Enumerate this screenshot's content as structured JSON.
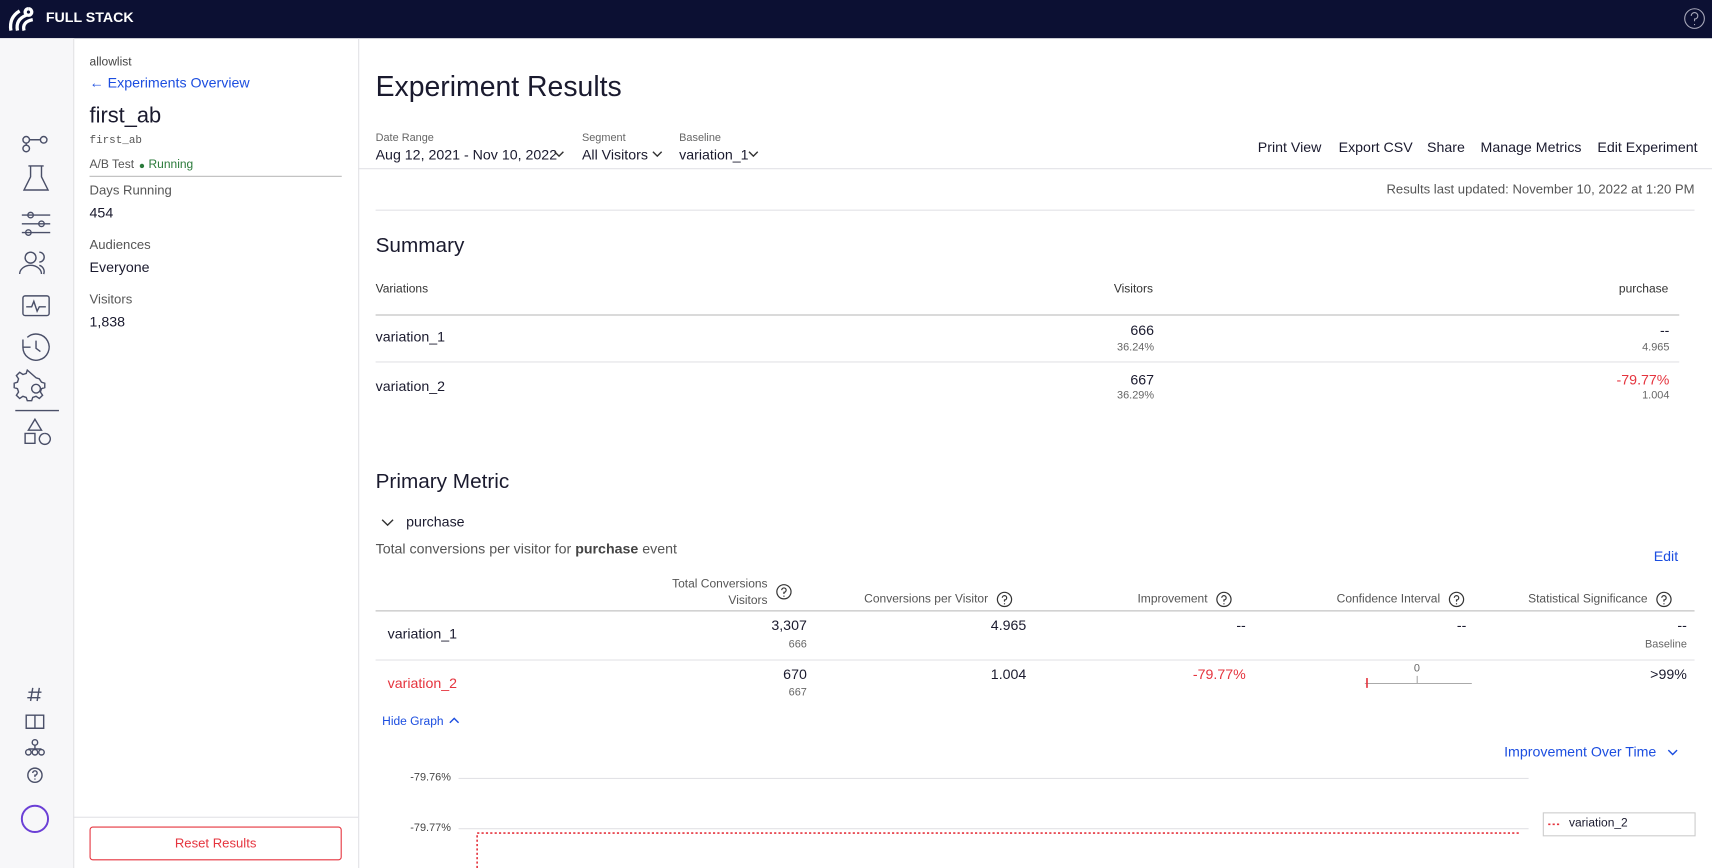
{
  "topbar": {
    "brand": "FULL STACK"
  },
  "sidebar": {
    "project": "allowlist",
    "back": "Experiments Overview",
    "name": "first_ab",
    "key": "first_ab",
    "type": "A/B Test",
    "status": "Running",
    "stats": [
      {
        "label": "Days Running",
        "value": "454"
      },
      {
        "label": "Audiences",
        "value": "Everyone"
      },
      {
        "label": "Visitors",
        "value": "1,838"
      }
    ],
    "reset": "Reset Results"
  },
  "main": {
    "title": "Experiment Results",
    "filters": [
      {
        "label": "Date Range",
        "value": "Aug 12, 2021 - Nov 10, 2022"
      },
      {
        "label": "Segment",
        "value": "All Visitors"
      },
      {
        "label": "Baseline",
        "value": "variation_1"
      }
    ],
    "actions": [
      "Print View",
      "Export CSV",
      "Share",
      "Manage Metrics",
      "Edit Experiment"
    ],
    "updated": "Results last updated: November 10, 2022 at 1:20 PM",
    "summary": {
      "title": "Summary",
      "headers": [
        "Variations",
        "Visitors",
        "purchase"
      ],
      "rows": [
        [
          "variation_1",
          "666",
          "36.24%",
          "--",
          "4.965"
        ],
        [
          "variation_2",
          "667",
          "36.29%",
          "-79.77%",
          "1.004"
        ]
      ]
    },
    "primary": {
      "title": "Primary Metric",
      "metric": "purchase",
      "desc_pre": "Total conversions per visitor for",
      "desc_bold": "purchase",
      "desc_post": "event",
      "edit": "Edit",
      "headers": [
        "Total Conversions",
        "Visitors",
        "Conversions per Visitor",
        "Improvement",
        "Confidence Interval",
        "Statistical Significance"
      ],
      "rows": [
        {
          "name": "variation_1",
          "conv": "3,307",
          "visitors": "666",
          "cpv": "4.965",
          "imp": "--",
          "ci": "--",
          "sig": "--",
          "sig_note": "Baseline"
        },
        {
          "name": "variation_2",
          "conv": "670",
          "visitors": "667",
          "cpv": "1.004",
          "imp": "-79.77%",
          "ci_zero": "0",
          "sig": ">99%"
        }
      ],
      "hide_graph": "Hide Graph",
      "graph_select": "Improvement Over Time",
      "yticks": [
        "-79.76%",
        "-79.77%"
      ],
      "legend": "variation_2"
    }
  }
}
